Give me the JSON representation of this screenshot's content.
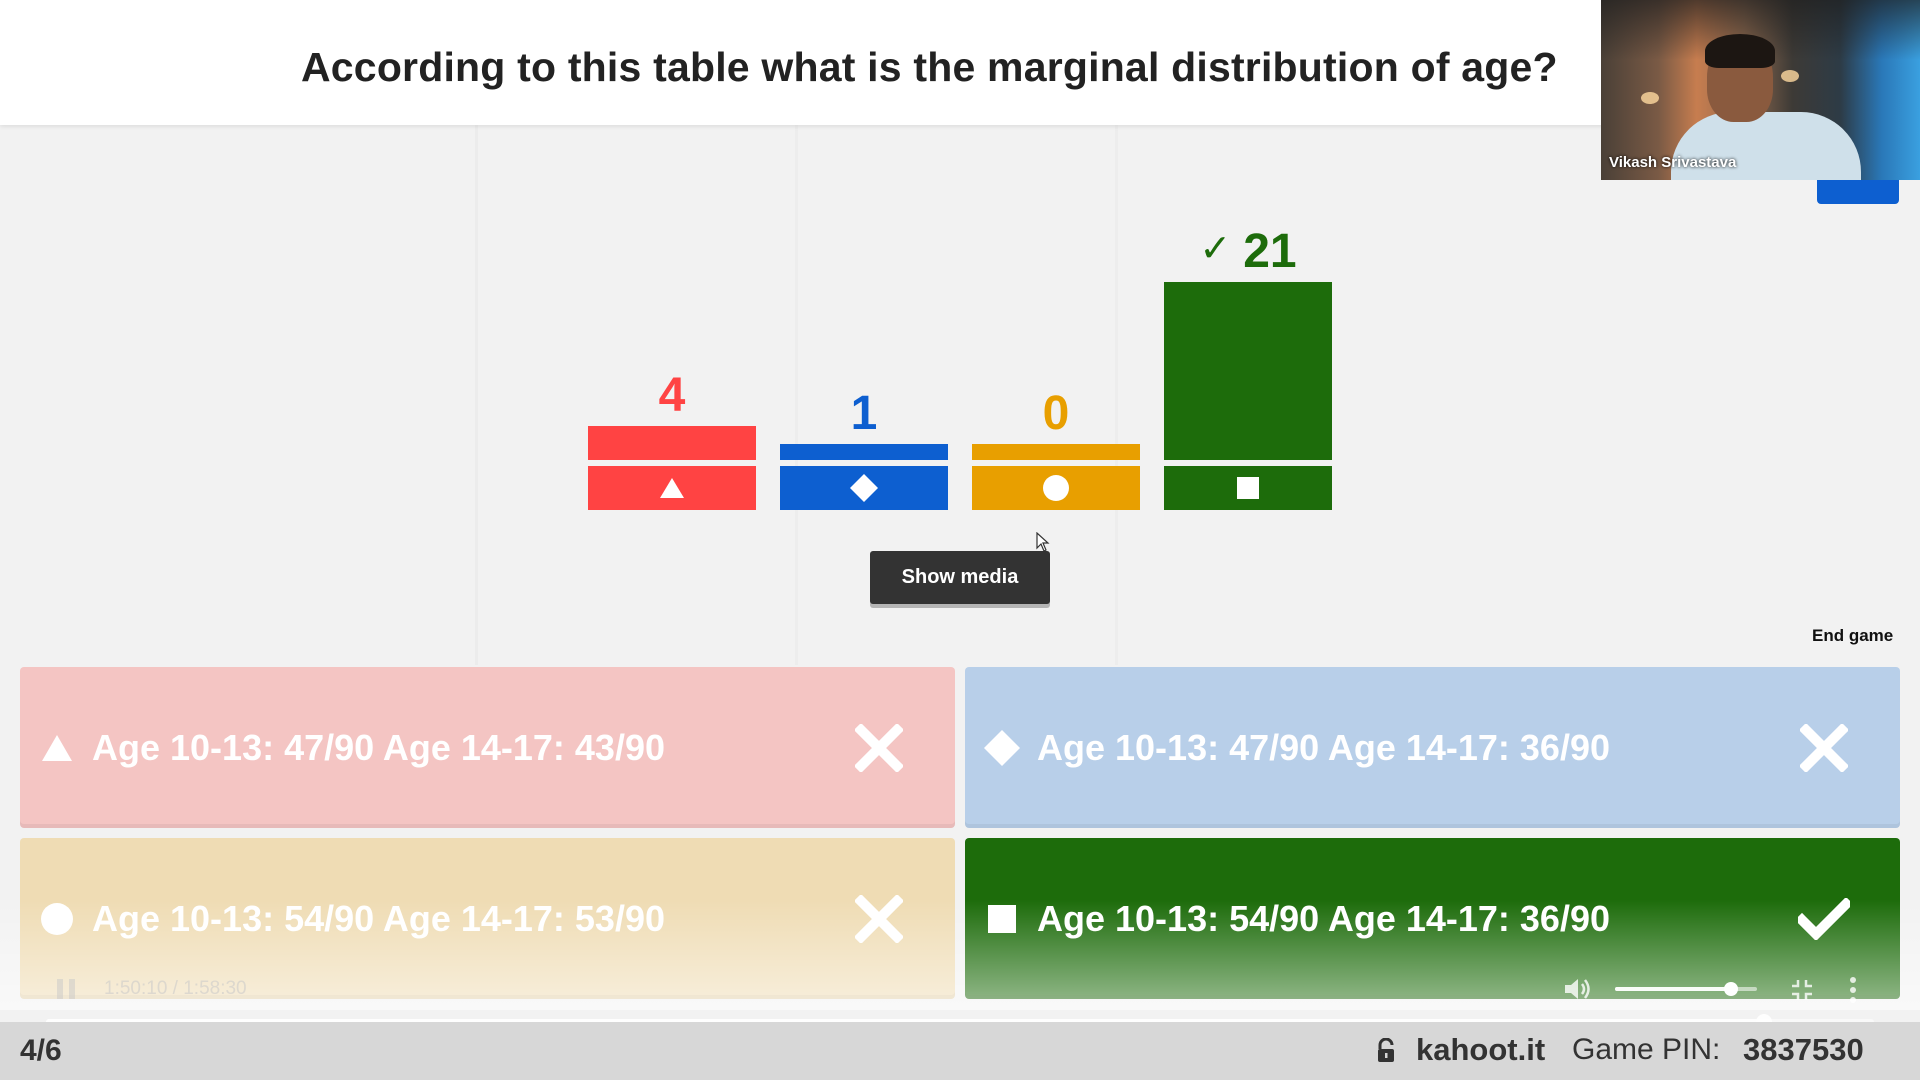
{
  "question": {
    "text": "According to this table what is the marginal distribution of  age?"
  },
  "presenter": {
    "name": "Vikash Srivastava"
  },
  "chart_data": {
    "type": "bar",
    "categories": [
      "triangle",
      "diamond",
      "circle",
      "square"
    ],
    "values": [
      4,
      1,
      0,
      21
    ],
    "colors": [
      "#ff4343",
      "#0d5fd0",
      "#e89f00",
      "#1d6c0b"
    ],
    "correct_index": 3,
    "correct_marker": "✓",
    "title": "",
    "ylim": [
      0,
      21
    ]
  },
  "controls": {
    "show_media_label": "Show media",
    "end_game_label": "End game"
  },
  "answers": [
    {
      "shape": "triangle-icon",
      "text": "Age 10-13: 47/90 Age 14-17: 43/90",
      "correct": false,
      "color": "#f4c5c3"
    },
    {
      "shape": "diamond-icon",
      "text": "Age 10-13: 47/90 Age 14-17: 36/90",
      "correct": false,
      "color": "#b8cfe9"
    },
    {
      "shape": "circle-icon",
      "text": "Age 10-13: 54/90 Age 14-17: 53/90",
      "correct": false,
      "color": "#efdcb4"
    },
    {
      "shape": "square-icon",
      "text": "Age 10-13: 54/90 Age 14-17: 36/90",
      "correct": true,
      "color": "#1d6c0b"
    }
  ],
  "player": {
    "time": "1:50:10 / 1:58:30",
    "volume": 0.82,
    "progress": 0.94
  },
  "footer": {
    "progress": "4/6",
    "site": "kahoot.it",
    "pin_label": "Game PIN:",
    "pin": "3837530"
  }
}
